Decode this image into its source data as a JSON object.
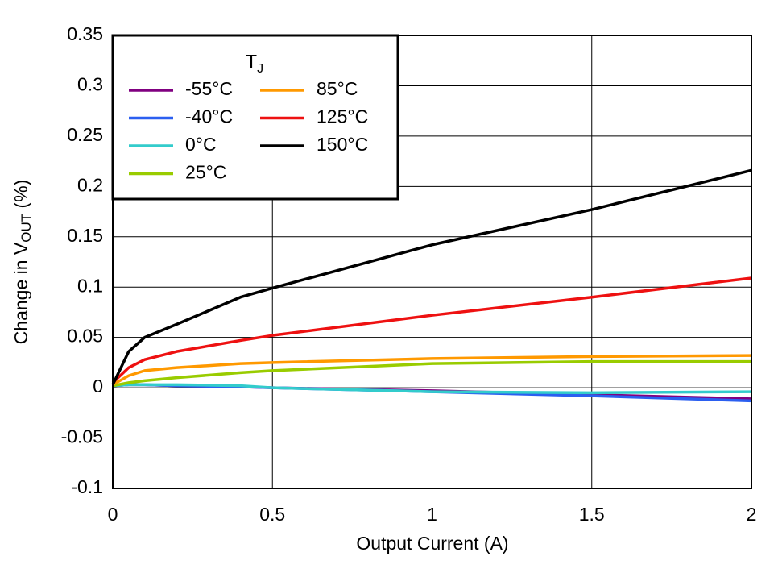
{
  "chart_data": {
    "type": "line",
    "xlabel": "Output Current (A)",
    "ylabel_parts": [
      "Change in V",
      "OUT",
      " (%)"
    ],
    "legend_title_parts": [
      "T",
      "J"
    ],
    "x": [
      0,
      0.05,
      0.1,
      0.2,
      0.4,
      0.5,
      1,
      1.5,
      2
    ],
    "series": [
      {
        "name": "-55°C",
        "color": "#800080",
        "values": [
          0.002,
          0.003,
          0.003,
          0.002,
          0.001,
          0,
          -0.003,
          -0.007,
          -0.011
        ]
      },
      {
        "name": "-40°C",
        "color": "#2b5ff0",
        "values": [
          0.002,
          0.003,
          0.003,
          0.002,
          0.001,
          0,
          -0.004,
          -0.008,
          -0.013
        ]
      },
      {
        "name": "0°C",
        "color": "#33cccc",
        "values": [
          0.002,
          0.003,
          0.003,
          0.003,
          0.002,
          0,
          -0.004,
          -0.005,
          -0.004
        ]
      },
      {
        "name": "25°C",
        "color": "#99cc00",
        "values": [
          0.002,
          0.005,
          0.007,
          0.01,
          0.015,
          0.017,
          0.024,
          0.026,
          0.026
        ]
      },
      {
        "name": "85°C",
        "color": "#ff9900",
        "values": [
          0.003,
          0.012,
          0.017,
          0.02,
          0.024,
          0.025,
          0.029,
          0.031,
          0.032
        ]
      },
      {
        "name": "125°C",
        "color": "#ee1111",
        "values": [
          0.005,
          0.02,
          0.028,
          0.036,
          0.047,
          0.052,
          0.072,
          0.09,
          0.109
        ]
      },
      {
        "name": "150°C",
        "color": "#000000",
        "values": [
          0.003,
          0.036,
          0.05,
          0.063,
          0.09,
          0.099,
          0.142,
          0.177,
          0.216
        ]
      }
    ],
    "xlim": [
      0,
      2
    ],
    "xticks": [
      0,
      0.5,
      1,
      1.5,
      2
    ],
    "ylim": [
      -0.1,
      0.35
    ],
    "yticks": [
      -0.1,
      -0.05,
      0,
      0.05,
      0.1,
      0.15,
      0.2,
      0.25,
      0.3,
      0.35
    ],
    "grid": true
  }
}
